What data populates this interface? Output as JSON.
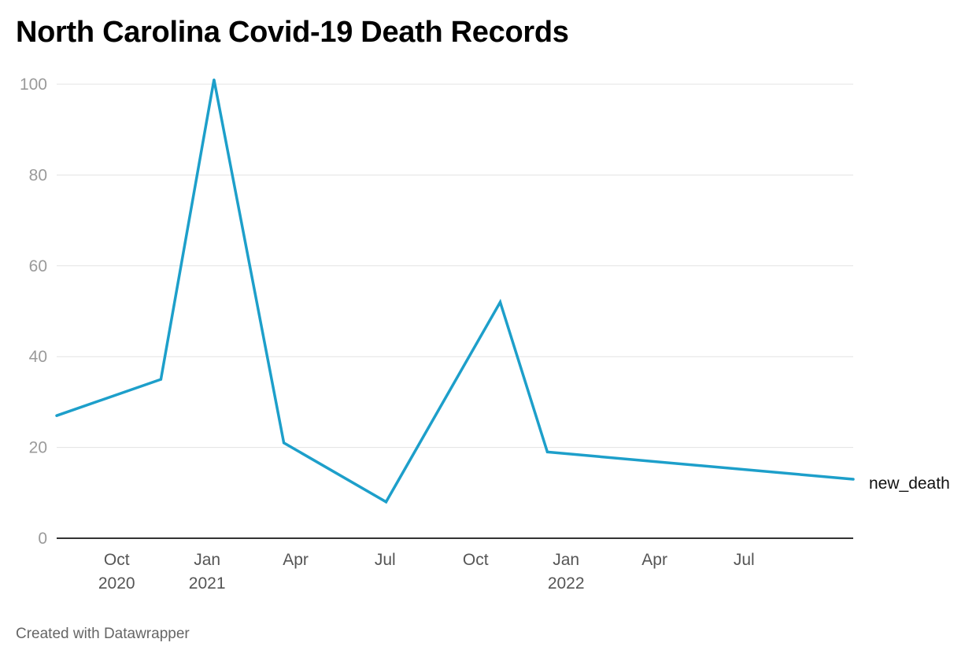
{
  "title": "North Carolina Covid-19 Death Records",
  "footer": "Created with Datawrapper",
  "chart_data": {
    "type": "line",
    "title": "North Carolina Covid-19 Death Records",
    "xlabel": "",
    "ylabel": "",
    "x_type": "date",
    "xlim": [
      "2020-08-01",
      "2022-10-20"
    ],
    "ylim": [
      0,
      100
    ],
    "y_ticks": [
      0,
      20,
      40,
      60,
      80,
      100
    ],
    "x_ticks": [
      {
        "date": "2020-10-01",
        "label": "Oct",
        "sublabel": "2020"
      },
      {
        "date": "2021-01-01",
        "label": "Jan",
        "sublabel": "2021"
      },
      {
        "date": "2021-04-01",
        "label": "Apr",
        "sublabel": ""
      },
      {
        "date": "2021-07-01",
        "label": "Jul",
        "sublabel": ""
      },
      {
        "date": "2021-10-01",
        "label": "Oct",
        "sublabel": ""
      },
      {
        "date": "2022-01-01",
        "label": "Jan",
        "sublabel": "2022"
      },
      {
        "date": "2022-04-01",
        "label": "Apr",
        "sublabel": ""
      },
      {
        "date": "2022-07-01",
        "label": "Jul",
        "sublabel": ""
      }
    ],
    "grid": true,
    "series": [
      {
        "name": "new_death",
        "color": "#1d9fca",
        "points": [
          {
            "x": "2020-08-01",
            "y": 27
          },
          {
            "x": "2020-11-15",
            "y": 35
          },
          {
            "x": "2021-01-08",
            "y": 101
          },
          {
            "x": "2021-03-20",
            "y": 21
          },
          {
            "x": "2021-07-02",
            "y": 8
          },
          {
            "x": "2021-10-26",
            "y": 52
          },
          {
            "x": "2021-12-13",
            "y": 19
          },
          {
            "x": "2022-10-20",
            "y": 13
          }
        ]
      }
    ]
  }
}
